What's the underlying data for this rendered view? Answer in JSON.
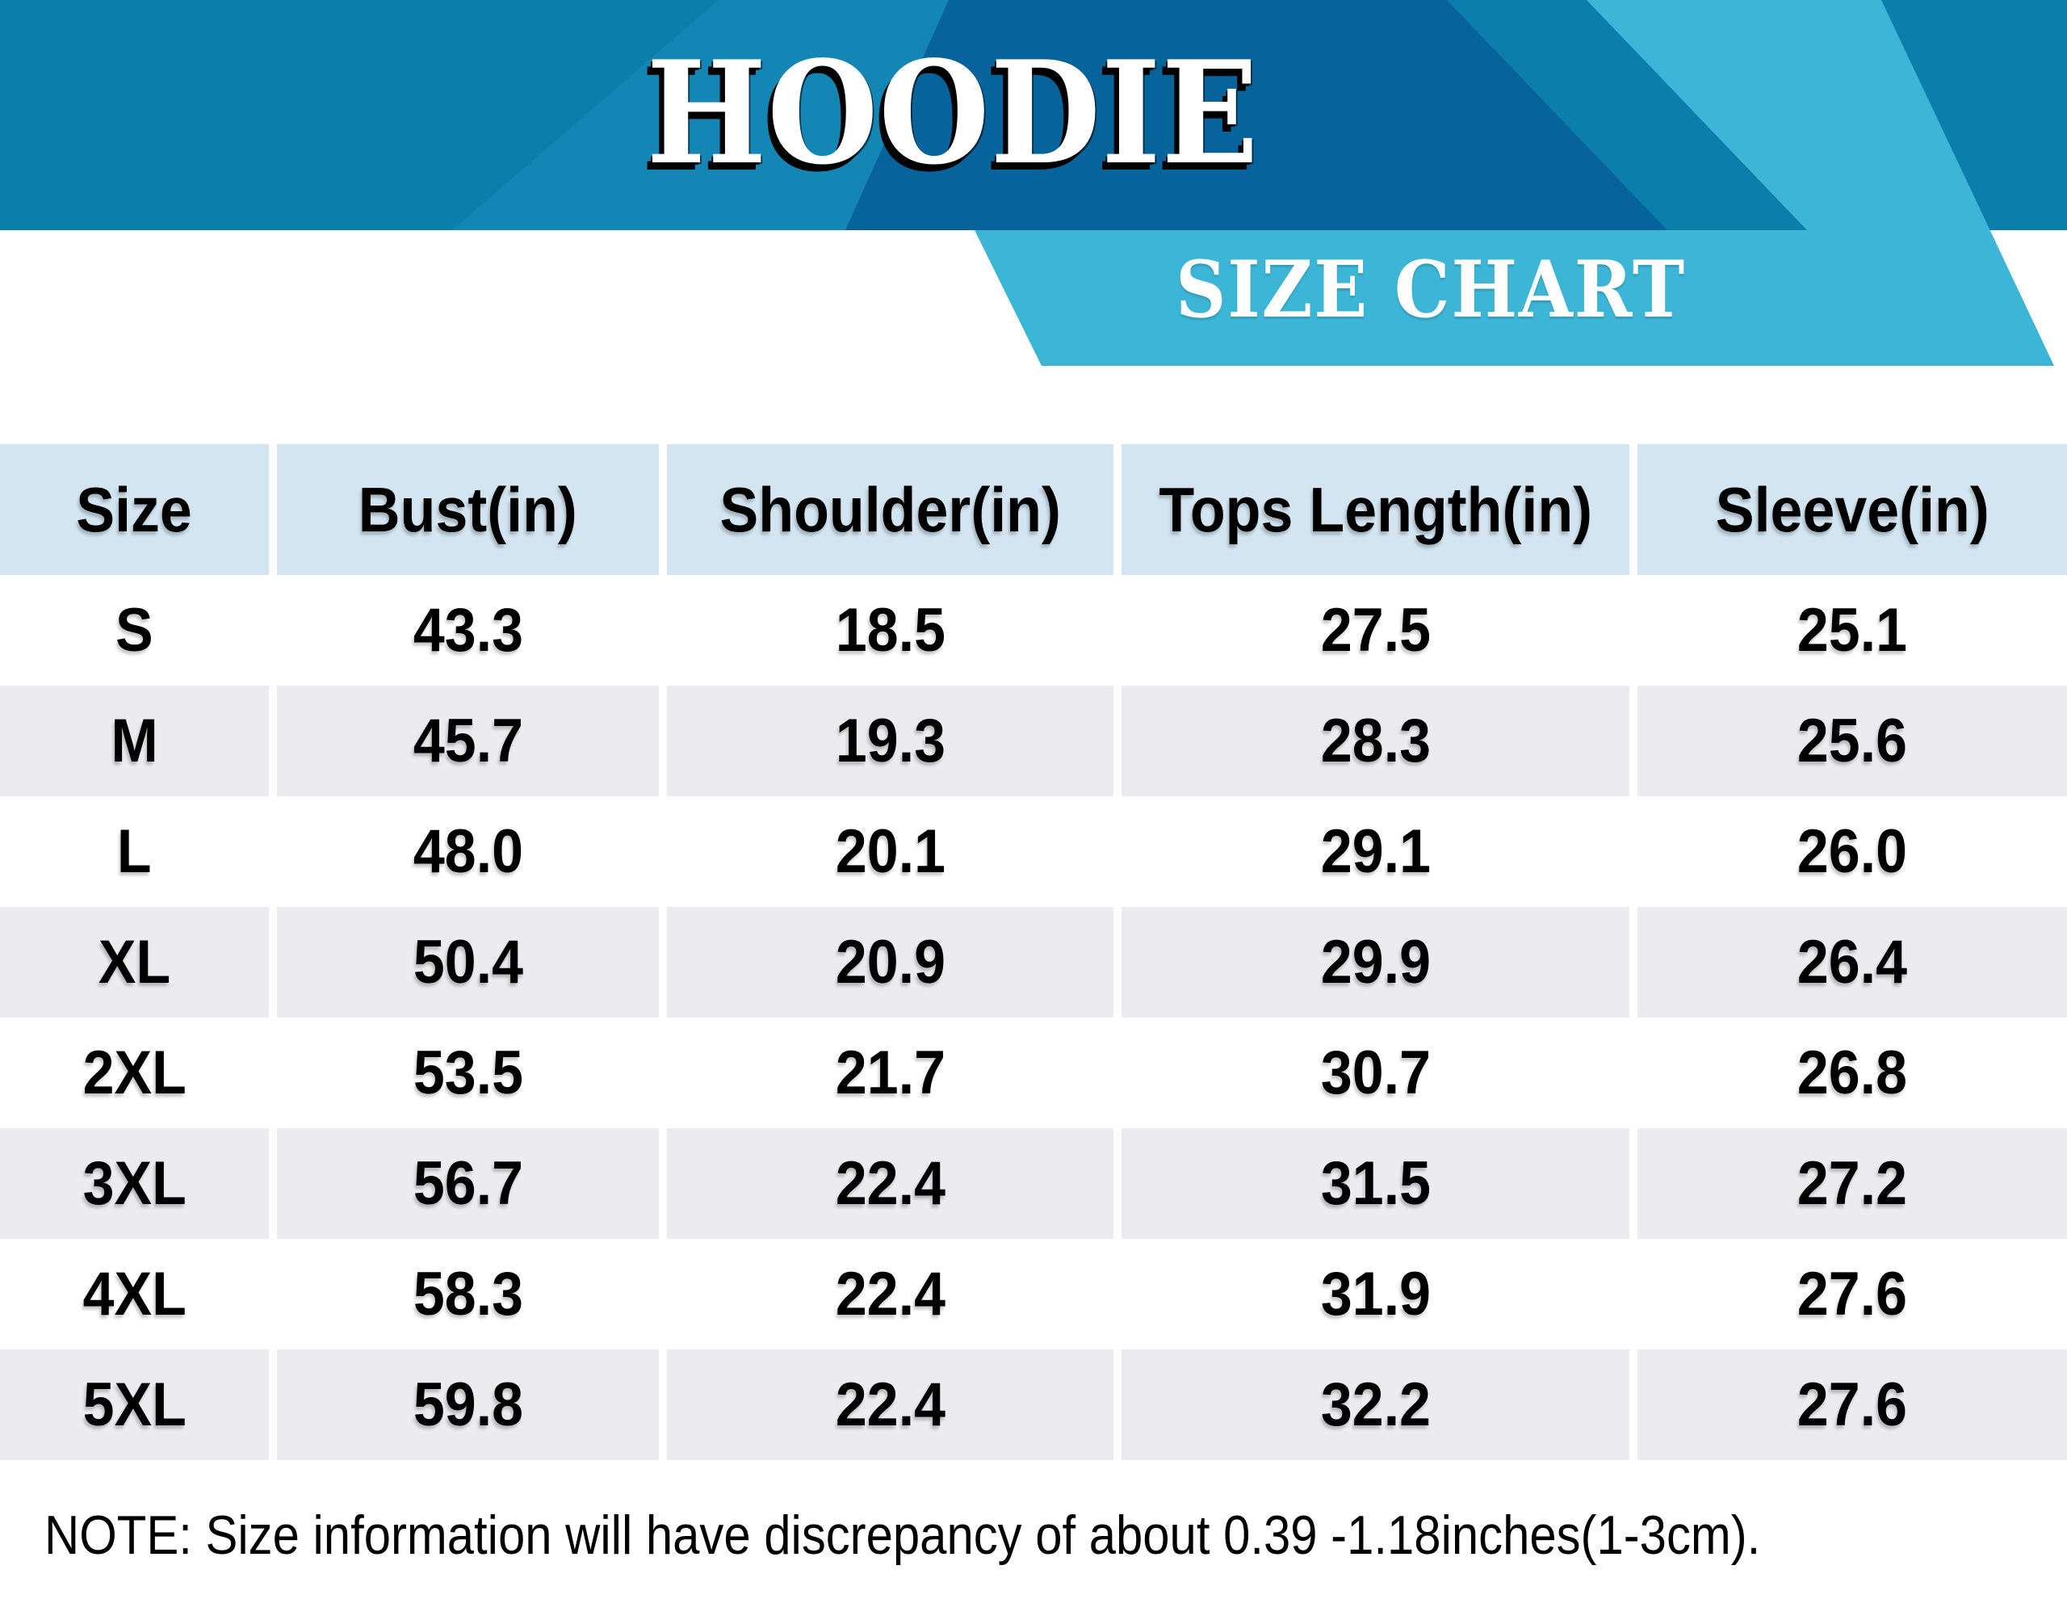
{
  "banner": {
    "title": "HOODIE",
    "subtitle": "SIZE CHART"
  },
  "colors": {
    "banner_base": "#0B7EAC",
    "banner_streak": "#1486B5",
    "banner_dark": "#07639B",
    "banner_light": "#3CB5D6",
    "header_bg": "#D2E5F1",
    "row_bg": "#FFFFFF",
    "row_alt_bg": "#ECEBF0",
    "text": "#000000",
    "title_color": "#FFFFFF"
  },
  "table": {
    "headers": [
      "Size",
      "Bust(in)",
      "Shoulder(in)",
      "Tops Length(in)",
      "Sleeve(in)"
    ],
    "rows": [
      [
        "S",
        "43.3",
        "18.5",
        "27.5",
        "25.1"
      ],
      [
        "M",
        "45.7",
        "19.3",
        "28.3",
        "25.6"
      ],
      [
        "L",
        "48.0",
        "20.1",
        "29.1",
        "26.0"
      ],
      [
        "XL",
        "50.4",
        "20.9",
        "29.9",
        "26.4"
      ],
      [
        "2XL",
        "53.5",
        "21.7",
        "30.7",
        "26.8"
      ],
      [
        "3XL",
        "56.7",
        "22.4",
        "31.5",
        "27.2"
      ],
      [
        "4XL",
        "58.3",
        "22.4",
        "31.9",
        "27.6"
      ],
      [
        "5XL",
        "59.8",
        "22.4",
        "32.2",
        "27.6"
      ]
    ]
  },
  "note": "NOTE: Size information will have discrepancy of about 0.39 -1.18inches(1-3cm).",
  "chart_data": {
    "type": "table",
    "title": "HOODIE",
    "subtitle": "SIZE CHART",
    "columns": [
      "Size",
      "Bust(in)",
      "Shoulder(in)",
      "Tops Length(in)",
      "Sleeve(in)"
    ],
    "rows": [
      [
        "S",
        43.3,
        18.5,
        27.5,
        25.1
      ],
      [
        "M",
        45.7,
        19.3,
        28.3,
        25.6
      ],
      [
        "L",
        48.0,
        20.1,
        29.1,
        26.0
      ],
      [
        "XL",
        50.4,
        20.9,
        29.9,
        26.4
      ],
      [
        "2XL",
        53.5,
        21.7,
        30.7,
        26.8
      ],
      [
        "3XL",
        56.7,
        22.4,
        31.5,
        27.2
      ],
      [
        "4XL",
        58.3,
        22.4,
        31.9,
        27.6
      ],
      [
        "5XL",
        59.8,
        22.4,
        32.2,
        27.6
      ]
    ],
    "note": "NOTE: Size information will have discrepancy of about 0.39 -1.18inches(1-3cm).",
    "units": "inches"
  }
}
